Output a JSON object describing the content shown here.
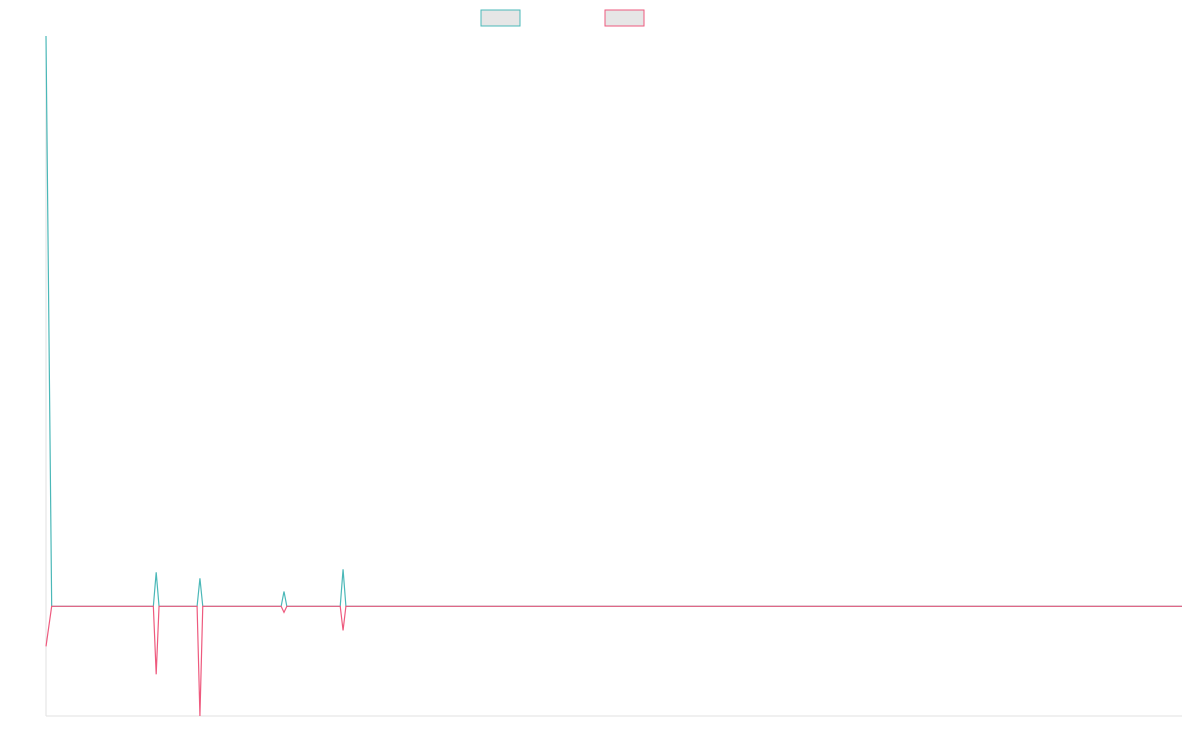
{
  "chart_data": {
    "type": "line",
    "x": [
      0,
      1,
      18.9,
      19.4,
      19.9,
      26.6,
      27.1,
      27.6,
      41.4,
      41.9,
      42.4,
      51.8,
      52.3,
      52.8,
      53.9,
      200
    ],
    "series": [
      {
        "color": "#4bb8b8",
        "values": [
          104,
          0,
          0,
          6.2,
          0,
          0,
          5.1,
          0,
          0,
          2.7,
          0,
          0,
          6.75,
          0,
          0,
          0
        ]
      },
      {
        "color": "#ee5a7e",
        "values": [
          -7.3,
          0,
          0,
          -12.4,
          0,
          0,
          -20,
          0,
          0,
          -1.1,
          0,
          0,
          -4.4,
          0,
          0,
          0
        ]
      }
    ],
    "xlim": [
      0,
      200
    ],
    "ylim": [
      -20,
      104
    ],
    "legend": "top"
  }
}
